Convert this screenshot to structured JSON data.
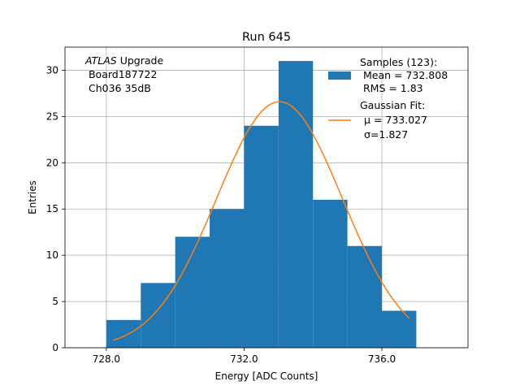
{
  "chart_data": {
    "type": "bar",
    "title": "Run 645",
    "xlabel": "Energy [ADC Counts]",
    "ylabel": "Entries",
    "xlim": [
      726.8,
      738.5
    ],
    "ylim": [
      0,
      32.5
    ],
    "grid": true,
    "x_ticks": [
      728.0,
      732.0,
      736.0
    ],
    "x_tick_labels": [
      "728.0",
      "732.0",
      "736.0"
    ],
    "y_ticks": [
      0,
      5,
      10,
      15,
      20,
      25,
      30
    ],
    "y_tick_labels": [
      "0",
      "5",
      "10",
      "15",
      "20",
      "25",
      "30"
    ],
    "bins": [
      {
        "x0": 728.0,
        "x1": 729.0,
        "count": 3
      },
      {
        "x0": 729.0,
        "x1": 730.0,
        "count": 7
      },
      {
        "x0": 730.0,
        "x1": 731.0,
        "count": 12
      },
      {
        "x0": 731.0,
        "x1": 732.0,
        "count": 15
      },
      {
        "x0": 732.0,
        "x1": 733.0,
        "count": 24
      },
      {
        "x0": 733.0,
        "x1": 734.0,
        "count": 31
      },
      {
        "x0": 734.0,
        "x1": 735.0,
        "count": 16
      },
      {
        "x0": 735.0,
        "x1": 736.0,
        "count": 11
      },
      {
        "x0": 736.0,
        "x1": 737.0,
        "count": 4
      }
    ],
    "fit": {
      "mu": 733.027,
      "sigma": 1.827,
      "amplitude": 26.6,
      "x_range": [
        728.2,
        736.8
      ]
    },
    "colors": {
      "bars": "#1f77b4",
      "fit": "#ff7f0e",
      "grid": "#b0b0b0"
    },
    "legend_position": "upper right",
    "legend": {
      "samples_lines": [
        "Samples (123):",
        " Mean = 732.808",
        " RMS = 1.83"
      ],
      "fit_lines": [
        "Gaussian Fit:",
        "μ = 733.027",
        "σ=1.827"
      ]
    },
    "annotation": {
      "atlas": "ATLAS",
      "upgrade": " Upgrade",
      "board": " Board187722",
      "channel": " Ch036 35dB"
    }
  }
}
